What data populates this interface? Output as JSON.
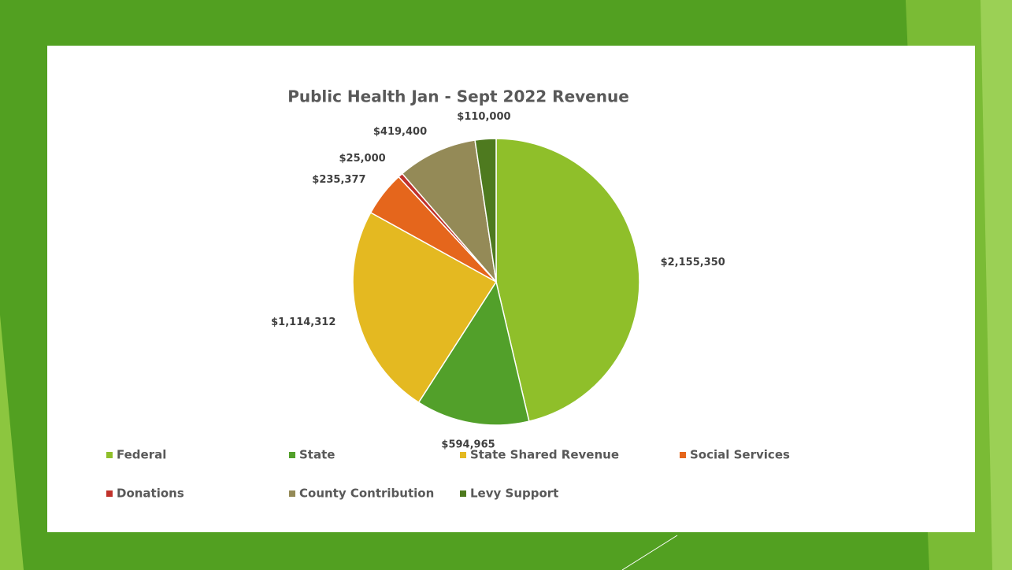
{
  "chart_data": {
    "type": "pie",
    "title": "Public Health Jan - Sept 2022 Revenue",
    "categories": [
      "Federal",
      "State",
      "State Shared Revenue",
      "Social Services",
      "Donations",
      "County Contribution",
      "Levy Support"
    ],
    "values": [
      2155350,
      594965,
      1114312,
      235377,
      25000,
      419400,
      110000
    ],
    "value_labels": [
      "$2,155,350",
      "$594,965",
      "$1,114,312",
      "$235,377",
      "$25,000",
      "$419,400",
      "$110,000"
    ],
    "colors": [
      "#8fbf2a",
      "#52a02a",
      "#e4b921",
      "#e5661c",
      "#c0322b",
      "#948a57",
      "#4e7a1f"
    ],
    "legend": "bottom"
  }
}
